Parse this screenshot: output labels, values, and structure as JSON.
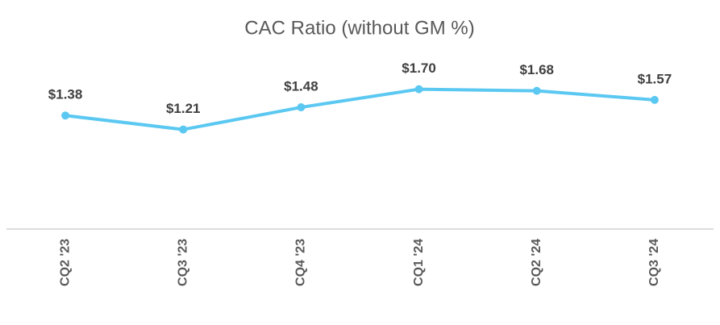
{
  "chart_data": {
    "type": "line",
    "title": "CAC Ratio (without GM %)",
    "categories": [
      "CQ2 '23",
      "CQ3 '23",
      "CQ4 '23",
      "CQ1 '24",
      "CQ2 '24",
      "CQ3 '24"
    ],
    "values": [
      1.38,
      1.21,
      1.48,
      1.7,
      1.68,
      1.57
    ],
    "value_labels": [
      "$1.38",
      "$1.21",
      "$1.48",
      "$1.70",
      "$1.68",
      "$1.57"
    ],
    "color": "#5bc8f2",
    "ylim": [
      0,
      2.5
    ]
  }
}
